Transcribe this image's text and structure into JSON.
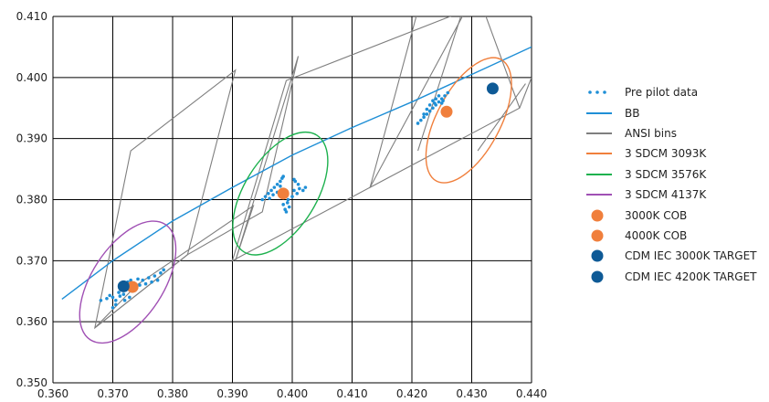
{
  "chart_data": {
    "type": "scatter",
    "title": "",
    "xlabel": "",
    "ylabel": "",
    "xlim": [
      0.36,
      0.44
    ],
    "ylim": [
      0.35,
      0.41
    ],
    "x_ticks": [
      0.36,
      0.37,
      0.38,
      0.39,
      0.4,
      0.41,
      0.42,
      0.43,
      0.44
    ],
    "y_ticks": [
      0.35,
      0.36,
      0.37,
      0.38,
      0.39,
      0.4,
      0.41
    ],
    "x_tick_labels": [
      "0.360",
      "0.370",
      "0.380",
      "0.390",
      "0.400",
      "0.410",
      "0.420",
      "0.430",
      "0.440"
    ],
    "y_tick_labels": [
      "0.350",
      "0.360",
      "0.370",
      "0.380",
      "0.390",
      "0.400",
      "0.410"
    ],
    "grid": true,
    "legend_position": "right",
    "series": [
      {
        "name": "Pre pilot data",
        "kind": "points",
        "color": "#1f8fd6",
        "points": [
          [
            0.368,
            0.3635
          ],
          [
            0.369,
            0.3638
          ],
          [
            0.3695,
            0.3643
          ],
          [
            0.37,
            0.364
          ],
          [
            0.3705,
            0.3635
          ],
          [
            0.3705,
            0.3628
          ],
          [
            0.371,
            0.3648
          ],
          [
            0.3712,
            0.3642
          ],
          [
            0.3715,
            0.3655
          ],
          [
            0.3718,
            0.3645
          ],
          [
            0.372,
            0.366
          ],
          [
            0.3722,
            0.3652
          ],
          [
            0.3725,
            0.3665
          ],
          [
            0.3728,
            0.364
          ],
          [
            0.373,
            0.3668
          ],
          [
            0.3732,
            0.365
          ],
          [
            0.3735,
            0.3662
          ],
          [
            0.3738,
            0.3655
          ],
          [
            0.3742,
            0.367
          ],
          [
            0.3745,
            0.366
          ],
          [
            0.375,
            0.3668
          ],
          [
            0.3755,
            0.3662
          ],
          [
            0.376,
            0.3672
          ],
          [
            0.3765,
            0.3665
          ],
          [
            0.377,
            0.3675
          ],
          [
            0.3775,
            0.3668
          ],
          [
            0.378,
            0.368
          ],
          [
            0.3785,
            0.3685
          ],
          [
            0.37,
            0.3623
          ],
          [
            0.372,
            0.3635
          ],
          [
            0.395,
            0.38
          ],
          [
            0.3955,
            0.3805
          ],
          [
            0.396,
            0.381
          ],
          [
            0.3965,
            0.3815
          ],
          [
            0.397,
            0.382
          ],
          [
            0.3975,
            0.3825
          ],
          [
            0.398,
            0.383
          ],
          [
            0.3983,
            0.3835
          ],
          [
            0.3985,
            0.3838
          ],
          [
            0.3975,
            0.3812
          ],
          [
            0.398,
            0.3822
          ],
          [
            0.3988,
            0.3815
          ],
          [
            0.399,
            0.3808
          ],
          [
            0.3992,
            0.3795
          ],
          [
            0.3995,
            0.3788
          ],
          [
            0.3985,
            0.3792
          ],
          [
            0.3988,
            0.3784
          ],
          [
            0.3993,
            0.38
          ],
          [
            0.4,
            0.3805
          ],
          [
            0.4003,
            0.3815
          ],
          [
            0.4008,
            0.381
          ],
          [
            0.4012,
            0.3818
          ],
          [
            0.4018,
            0.3815
          ],
          [
            0.4022,
            0.382
          ],
          [
            0.4005,
            0.383
          ],
          [
            0.401,
            0.3825
          ],
          [
            0.4003,
            0.3833
          ],
          [
            0.3968,
            0.3808
          ],
          [
            0.3962,
            0.3802
          ],
          [
            0.399,
            0.378
          ],
          [
            0.421,
            0.3925
          ],
          [
            0.4215,
            0.393
          ],
          [
            0.422,
            0.3935
          ],
          [
            0.4225,
            0.394
          ],
          [
            0.423,
            0.3945
          ],
          [
            0.4235,
            0.395
          ],
          [
            0.424,
            0.3955
          ],
          [
            0.4245,
            0.396
          ],
          [
            0.425,
            0.3965
          ],
          [
            0.4255,
            0.397
          ],
          [
            0.426,
            0.3975
          ],
          [
            0.424,
            0.3965
          ],
          [
            0.4245,
            0.397
          ],
          [
            0.425,
            0.3958
          ],
          [
            0.423,
            0.3955
          ],
          [
            0.4235,
            0.3962
          ],
          [
            0.4225,
            0.3948
          ],
          [
            0.422,
            0.394
          ],
          [
            0.4238,
            0.3958
          ],
          [
            0.4252,
            0.3962
          ]
        ]
      },
      {
        "name": "BB",
        "kind": "line",
        "color": "#1f8fd6",
        "points": [
          [
            0.3615,
            0.3637
          ],
          [
            0.37,
            0.37
          ],
          [
            0.38,
            0.3765
          ],
          [
            0.39,
            0.382
          ],
          [
            0.4,
            0.3873
          ],
          [
            0.41,
            0.3918
          ],
          [
            0.42,
            0.396
          ],
          [
            0.43,
            0.4005
          ],
          [
            0.44,
            0.405
          ]
        ]
      },
      {
        "name": "ANSI bins",
        "kind": "polygons",
        "color": "#7f7f7f",
        "polygons": [
          [
            [
              0.367,
              0.359
            ],
            [
              0.373,
              0.388
            ],
            [
              0.3905,
              0.4012
            ],
            [
              0.3825,
              0.371
            ]
          ],
          [
            [
              0.367,
              0.359
            ],
            [
              0.374,
              0.366
            ],
            [
              0.3935,
              0.379
            ],
            [
              0.3905,
              0.37
            ],
            [
              0.401,
              0.4035
            ],
            [
              0.395,
              0.378
            ],
            [
              0.3825,
              0.371
            ]
          ],
          [
            [
              0.39,
              0.37
            ],
            [
              0.399,
              0.3995
            ],
            [
              0.429,
              0.411
            ],
            [
              0.413,
              0.382
            ]
          ],
          [
            [
              0.413,
              0.382
            ],
            [
              0.421,
              0.411
            ],
            [
              0.432,
              0.411
            ],
            [
              0.438,
              0.395
            ]
          ],
          [
            [
              0.421,
              0.388
            ],
            [
              0.4285,
              0.411
            ]
          ],
          [
            [
              0.438,
              0.395
            ],
            [
              0.44,
              0.4
            ]
          ],
          [
            [
              0.431,
              0.388
            ],
            [
              0.439,
              0.399
            ]
          ]
        ]
      },
      {
        "name": "3 SDCM 3093K",
        "kind": "ellipse",
        "color": "#f07f3c",
        "center": [
          0.4295,
          0.393
        ],
        "rx_deg": [
          0.0115,
          0.0053
        ],
        "angle": 62
      },
      {
        "name": "3 SDCM 3576K",
        "kind": "ellipse",
        "color": "#1db14e",
        "center": [
          0.398,
          0.381
        ],
        "rx_deg": [
          0.0115,
          0.006
        ],
        "angle": 58
      },
      {
        "name": "3 SDCM 4137K",
        "kind": "ellipse",
        "color": "#a050b4",
        "center": [
          0.3725,
          0.3665
        ],
        "rx_deg": [
          0.0115,
          0.006
        ],
        "angle": 57
      },
      {
        "name": "3000K COB",
        "kind": "marker",
        "color": "#f07f3c",
        "points": [
          [
            0.4258,
            0.3944
          ]
        ]
      },
      {
        "name": "4000K COB",
        "kind": "marker",
        "color": "#f07f3c",
        "points": [
          [
            0.3985,
            0.381
          ],
          [
            0.3733,
            0.3657
          ]
        ]
      },
      {
        "name": "CDM IEC 3000K TARGET",
        "kind": "marker",
        "color": "#0e5a96",
        "points": [
          [
            0.4335,
            0.3982
          ]
        ]
      },
      {
        "name": "CDM IEC 4200K TARGET",
        "kind": "marker",
        "color": "#0e5a96",
        "points": [
          [
            0.3718,
            0.3658
          ]
        ]
      }
    ]
  },
  "legend": [
    {
      "label": "Pre pilot data",
      "symbol": "dots",
      "color": "#1f8fd6"
    },
    {
      "label": "BB",
      "symbol": "line",
      "color": "#1f8fd6"
    },
    {
      "label": "ANSI bins",
      "symbol": "line",
      "color": "#7f7f7f"
    },
    {
      "label": "3 SDCM 3093K",
      "symbol": "line",
      "color": "#f07f3c"
    },
    {
      "label": "3 SDCM 3576K",
      "symbol": "line",
      "color": "#1db14e"
    },
    {
      "label": "3 SDCM 4137K",
      "symbol": "line",
      "color": "#a050b4"
    },
    {
      "label": "3000K COB",
      "symbol": "circle",
      "color": "#f07f3c"
    },
    {
      "label": "4000K COB",
      "symbol": "circle",
      "color": "#f07f3c"
    },
    {
      "label": "CDM IEC 3000K TARGET",
      "symbol": "circle",
      "color": "#0e5a96"
    },
    {
      "label": "CDM IEC 4200K TARGET",
      "symbol": "circle",
      "color": "#0e5a96"
    }
  ]
}
